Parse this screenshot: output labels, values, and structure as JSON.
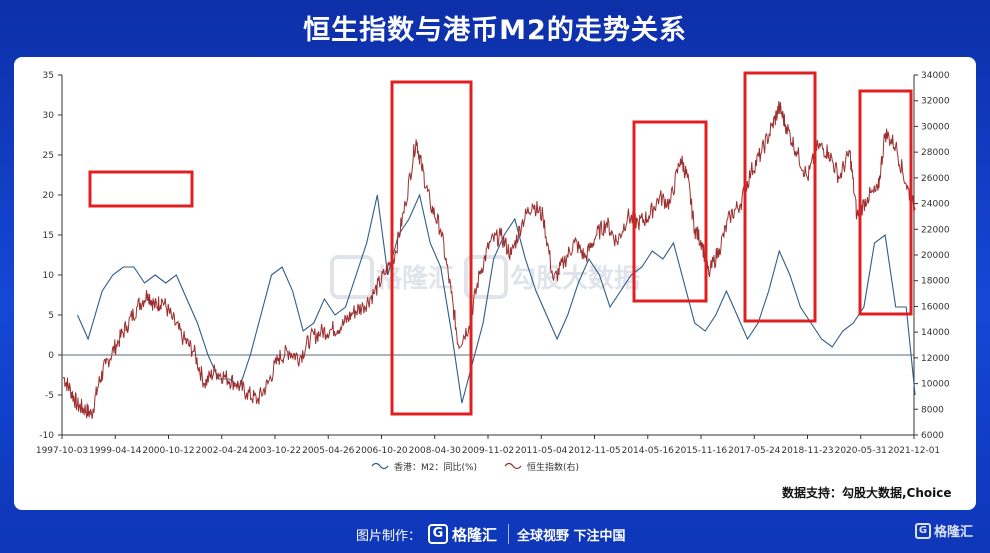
{
  "header": {
    "title": "恒生指数与港币M2的走势关系"
  },
  "source": {
    "text": "数据支持：勾股大数据,Choice"
  },
  "footer": {
    "made_by": "图片制作：",
    "brand": "格隆汇",
    "slogan": "全球视野 下注中国",
    "corner_brand": "格隆汇"
  },
  "watermark": {
    "left": "格隆汇",
    "right": "勾股大数据"
  },
  "colors": {
    "m2": "#2f5d8a",
    "hsi": "#9b2f2f",
    "highlight": "#e02020",
    "zero_line": "#5a6a7a"
  },
  "chart_data": {
    "type": "line",
    "dual_axis": true,
    "x_tick_labels": [
      "1997-10-03",
      "1999-04-14",
      "2000-10-12",
      "2002-04-24",
      "2003-10-22",
      "2005-04-26",
      "2006-10-20",
      "2008-04-30",
      "2009-11-02",
      "2011-05-04",
      "2012-11-05",
      "2014-05-16",
      "2015-11-16",
      "2017-05-24",
      "2018-11-23",
      "2020-05-31",
      "2021-12-01"
    ],
    "y_left": {
      "lim": [
        -10,
        35
      ],
      "ticks": [
        -10,
        -5,
        0,
        5,
        10,
        15,
        20,
        25,
        30,
        35
      ]
    },
    "y_right": {
      "lim": [
        6000,
        34000
      ],
      "ticks": [
        6000,
        8000,
        10000,
        12000,
        14000,
        16000,
        18000,
        20000,
        22000,
        24000,
        26000,
        28000,
        30000,
        32000,
        34000
      ]
    },
    "legend": {
      "position": "bottom"
    },
    "series": [
      {
        "name": "香港：M2：同比(%)",
        "axis": "left",
        "x": [
          1998.2,
          1998.5,
          1998.9,
          1999.2,
          1999.5,
          1999.8,
          2000.1,
          2000.4,
          2000.7,
          2001.0,
          2001.3,
          2001.6,
          2001.9,
          2002.2,
          2002.5,
          2002.8,
          2003.1,
          2003.4,
          2003.7,
          2004.0,
          2004.3,
          2004.6,
          2004.9,
          2005.2,
          2005.5,
          2005.8,
          2006.1,
          2006.4,
          2006.7,
          2007.0,
          2007.3,
          2007.6,
          2007.9,
          2008.2,
          2008.5,
          2008.8,
          2009.1,
          2009.4,
          2009.7,
          2010.0,
          2010.3,
          2010.6,
          2010.9,
          2011.2,
          2011.5,
          2011.8,
          2012.1,
          2012.4,
          2012.7,
          2013.0,
          2013.3,
          2013.6,
          2013.9,
          2014.2,
          2014.5,
          2014.8,
          2015.1,
          2015.4,
          2015.7,
          2016.0,
          2016.3,
          2016.6,
          2016.9,
          2017.2,
          2017.5,
          2017.8,
          2018.1,
          2018.4,
          2018.7,
          2019.0,
          2019.3,
          2019.6,
          2019.9,
          2020.2,
          2020.5,
          2020.8,
          2021.1,
          2021.4,
          2021.7,
          2021.95
        ],
        "values": [
          5,
          2,
          8,
          10,
          11,
          11,
          9,
          10,
          9,
          10,
          7,
          4,
          0,
          -3,
          -3,
          -4,
          0,
          5,
          10,
          11,
          8,
          3,
          4,
          7,
          5,
          6,
          10,
          14,
          20,
          10,
          15,
          17,
          20,
          14,
          11,
          3,
          -6,
          -1,
          4,
          12,
          15,
          17,
          12,
          8,
          5,
          2,
          5,
          9,
          12,
          10,
          6,
          8,
          10,
          11,
          13,
          12,
          14,
          9,
          4,
          3,
          5,
          8,
          5,
          2,
          4,
          8,
          13,
          10,
          6,
          4,
          2,
          1,
          3,
          4,
          6,
          14,
          15,
          6,
          6,
          -5
        ]
      },
      {
        "name": "恒生指数(右)",
        "axis": "right",
        "x": [
          1997.8,
          1998.0,
          1998.2,
          1998.4,
          1998.6,
          1998.8,
          1999.0,
          1999.3,
          1999.6,
          1999.9,
          2000.2,
          2000.4,
          2000.6,
          2000.9,
          2001.2,
          2001.5,
          2001.8,
          2002.1,
          2002.4,
          2002.7,
          2003.0,
          2003.3,
          2003.6,
          2003.9,
          2004.2,
          2004.5,
          2004.8,
          2005.1,
          2005.4,
          2005.7,
          2006.0,
          2006.3,
          2006.6,
          2006.9,
          2007.2,
          2007.5,
          2007.8,
          2007.95,
          2008.2,
          2008.5,
          2008.8,
          2009.0,
          2009.3,
          2009.6,
          2009.9,
          2010.2,
          2010.5,
          2010.8,
          2011.1,
          2011.4,
          2011.7,
          2012.0,
          2012.3,
          2012.6,
          2012.9,
          2013.2,
          2013.5,
          2013.8,
          2014.1,
          2014.4,
          2014.7,
          2015.0,
          2015.3,
          2015.5,
          2015.7,
          2015.9,
          2016.1,
          2016.4,
          2016.7,
          2017.0,
          2017.3,
          2017.6,
          2017.9,
          2018.1,
          2018.3,
          2018.6,
          2018.9,
          2019.2,
          2019.5,
          2019.8,
          2020.1,
          2020.3,
          2020.6,
          2020.9,
          2021.1,
          2021.4,
          2021.7,
          2021.95
        ],
        "values": [
          10500,
          9500,
          8300,
          8000,
          7600,
          10000,
          11500,
          13000,
          14500,
          16000,
          17000,
          16000,
          16500,
          15000,
          13500,
          12500,
          10000,
          11000,
          10500,
          10000,
          9300,
          8700,
          10000,
          12000,
          12500,
          12000,
          13500,
          14000,
          14200,
          14500,
          15500,
          16000,
          17000,
          18500,
          20000,
          24000,
          29000,
          27000,
          24000,
          22000,
          17000,
          13000,
          14500,
          18500,
          21000,
          21500,
          20000,
          22500,
          24000,
          23000,
          18000,
          19500,
          21000,
          19800,
          21500,
          22500,
          21000,
          23000,
          22500,
          23000,
          24500,
          24000,
          27500,
          26000,
          22000,
          21000,
          18500,
          20500,
          23000,
          24000,
          26500,
          28000,
          30000,
          31500,
          30000,
          28000,
          26000,
          28500,
          28000,
          26000,
          28000,
          23000,
          24500,
          25000,
          29500,
          28500,
          25500,
          23500
        ]
      }
    ],
    "highlight_boxes": 5
  }
}
